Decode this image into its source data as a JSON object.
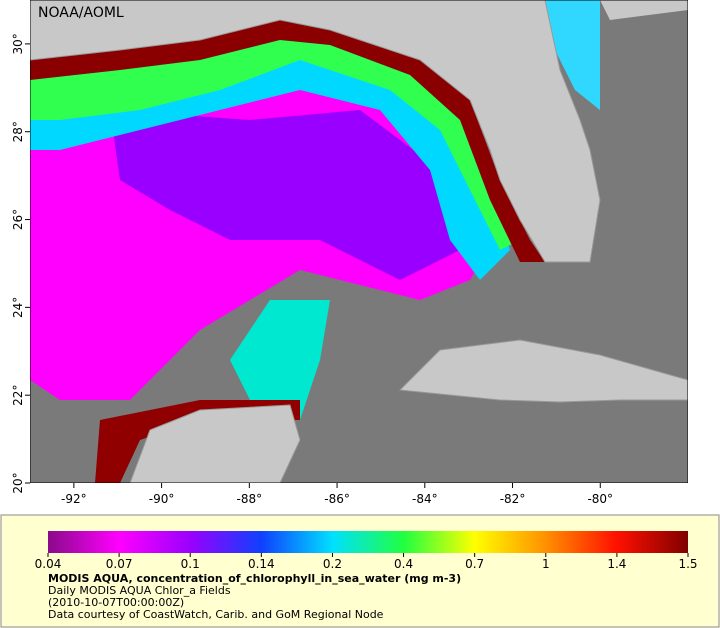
{
  "header": {
    "credit": "NOAA/AOML"
  },
  "map": {
    "xlim": [
      -93,
      -78
    ],
    "ylim": [
      20,
      31
    ],
    "lon_ticks": [
      {
        "value": -92,
        "label": "-92°"
      },
      {
        "value": -90,
        "label": "-90°"
      },
      {
        "value": -88,
        "label": "-88°"
      },
      {
        "value": -86,
        "label": "-86°"
      },
      {
        "value": -84,
        "label": "-84°"
      },
      {
        "value": -82,
        "label": "-82°"
      },
      {
        "value": -80,
        "label": "-80°"
      }
    ],
    "lat_ticks": [
      {
        "value": 20,
        "label": "20°"
      },
      {
        "value": 22,
        "label": "22°"
      },
      {
        "value": 24,
        "label": "24°"
      },
      {
        "value": 26,
        "label": "26°"
      },
      {
        "value": 28,
        "label": "28°"
      },
      {
        "value": 30,
        "label": "30°"
      }
    ]
  },
  "colorbar": {
    "ticks": [
      0.04,
      0.07,
      0.1,
      0.14,
      0.2,
      0.4,
      0.7,
      1,
      1.4,
      1.5
    ],
    "colors": [
      "#8a0a8a",
      "#ff00ff",
      "#9a00ff",
      "#1040ff",
      "#00e0ff",
      "#20ff40",
      "#ffff00",
      "#ff9000",
      "#ff1000",
      "#800000"
    ]
  },
  "caption": {
    "title": "MODIS AQUA, concentration_of_chlorophyll_in_sea_water (mg m-3)",
    "lines": [
      "Daily MODIS AQUA Chlor_a Fields",
      "(2010-10-07T00:00:00Z)",
      "Data courtesy of CoastWatch, Carib. and GoM Regional Node"
    ]
  }
}
